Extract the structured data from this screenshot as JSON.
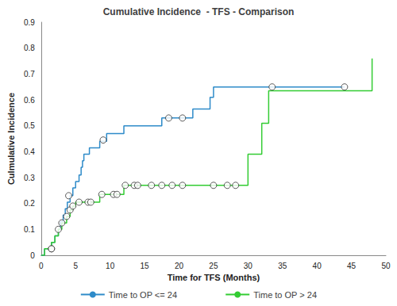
{
  "chart_data": {
    "type": "step",
    "title": "Cumulative Incidence  - TFS - Comparison",
    "x_label": "Time for TFS (Months)",
    "y_label": "Culmulative Incidence",
    "xlim": [
      0,
      50
    ],
    "xticks": [
      0,
      5,
      10,
      15,
      20,
      25,
      30,
      35,
      40,
      45,
      50
    ],
    "ylim": [
      0,
      0.9
    ],
    "yticks": [
      0,
      0.1,
      0.2,
      0.3,
      0.4,
      0.5,
      0.6,
      0.7,
      0.8,
      0.9
    ],
    "grid": false,
    "legend": "bottom",
    "marker": "circle",
    "series": [
      {
        "name": "Time to OP <= 24",
        "color": "#2e8bc9",
        "x": [
          0,
          0.5,
          1.5,
          2,
          2.5,
          2.8,
          3.2,
          3.5,
          3.8,
          4.2,
          4.6,
          5,
          5.5,
          5.8,
          6,
          6.2,
          7,
          8.5,
          9.5,
          12,
          17.5,
          22,
          24.5,
          25,
          44
        ],
        "values": [
          0,
          0.025,
          0.05,
          0.075,
          0.1,
          0.13,
          0.155,
          0.18,
          0.205,
          0.23,
          0.26,
          0.285,
          0.31,
          0.34,
          0.365,
          0.39,
          0.415,
          0.44,
          0.47,
          0.5,
          0.53,
          0.565,
          0.61,
          0.65,
          0.65
        ],
        "censor_x": [
          1.5,
          4,
          9,
          18.5,
          20.5,
          33.5,
          44
        ],
        "censor_values": [
          0.025,
          0.23,
          0.445,
          0.53,
          0.53,
          0.65,
          0.65
        ]
      },
      {
        "name": "Time to OP > 24",
        "color": "#33cc33",
        "x": [
          0,
          0.5,
          1.5,
          2,
          2.5,
          3,
          3.7,
          4.2,
          4.6,
          5,
          8.5,
          12,
          30,
          32,
          33,
          48
        ],
        "values": [
          0,
          0.025,
          0.05,
          0.075,
          0.1,
          0.125,
          0.15,
          0.175,
          0.19,
          0.205,
          0.235,
          0.27,
          0.39,
          0.51,
          0.635,
          0.76
        ],
        "censor_x": [
          1.5,
          2.5,
          3,
          3.7,
          4.2,
          4.6,
          5.5,
          6.8,
          7.2,
          8.8,
          10.5,
          11,
          12.2,
          13.5,
          14,
          16,
          17.5,
          19,
          20.5,
          25,
          27,
          28.2
        ],
        "censor_values": [
          0.025,
          0.1,
          0.125,
          0.15,
          0.175,
          0.19,
          0.205,
          0.205,
          0.205,
          0.235,
          0.235,
          0.235,
          0.27,
          0.27,
          0.27,
          0.27,
          0.27,
          0.27,
          0.27,
          0.27,
          0.27,
          0.27
        ]
      }
    ]
  }
}
